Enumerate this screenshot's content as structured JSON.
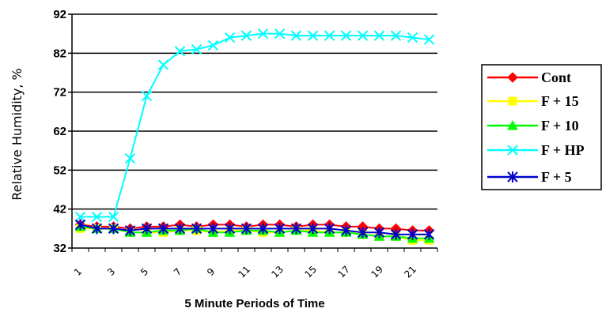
{
  "chart_data": {
    "type": "line",
    "title": "",
    "xlabel": "5 Minute Periods of Time",
    "ylabel": "Relative Humidity, %",
    "ylim": [
      32,
      92
    ],
    "yticks": [
      32,
      42,
      52,
      62,
      72,
      82,
      92
    ],
    "x": [
      1,
      2,
      3,
      4,
      5,
      6,
      7,
      8,
      9,
      10,
      11,
      12,
      13,
      14,
      15,
      16,
      17,
      18,
      19,
      20,
      21,
      22
    ],
    "x_tick_labels": [
      "1",
      "3",
      "5",
      "7",
      "9",
      "11",
      "13",
      "15",
      "17",
      "19",
      "21"
    ],
    "grid": "horizontal",
    "legend_position": "right",
    "series": [
      {
        "name": "Cont",
        "color": "#ff0000",
        "marker": "diamond",
        "values": [
          38,
          37.5,
          37.5,
          37,
          37.5,
          37.5,
          38,
          37.5,
          38,
          38,
          37.5,
          38,
          38,
          37.5,
          38,
          38,
          37.5,
          37.5,
          37,
          37,
          36.5,
          36.5
        ]
      },
      {
        "name": "F + 15",
        "color": "#ffff00",
        "marker": "square",
        "values": [
          37,
          37,
          37,
          36,
          36,
          36,
          36.5,
          36.5,
          36,
          36.5,
          36.5,
          36,
          36,
          36.5,
          36.5,
          36,
          36,
          35.5,
          35,
          35,
          34,
          34
        ]
      },
      {
        "name": "F + 10",
        "color": "#00ff00",
        "marker": "triangle",
        "values": [
          37.5,
          37,
          37,
          36,
          36,
          36.5,
          36.5,
          37,
          36,
          36,
          36.5,
          36.5,
          36,
          36.5,
          36,
          36,
          36,
          35.5,
          35,
          35,
          34.5,
          34.5
        ]
      },
      {
        "name": "F + HP",
        "color": "#00ffff",
        "marker": "x",
        "values": [
          40,
          40,
          40,
          55,
          71,
          79,
          82.5,
          83,
          84,
          86,
          86.5,
          87,
          87,
          86.5,
          86.5,
          86.5,
          86.5,
          86.5,
          86.5,
          86.5,
          86,
          85.5
        ]
      },
      {
        "name": "F + 5",
        "color": "#0000cc",
        "marker": "star",
        "values": [
          38,
          37,
          37,
          36.5,
          37,
          37,
          37,
          37,
          37,
          37,
          37,
          37,
          37,
          37,
          37,
          37,
          36.5,
          36,
          36,
          35.5,
          35.5,
          35.5
        ]
      }
    ]
  }
}
